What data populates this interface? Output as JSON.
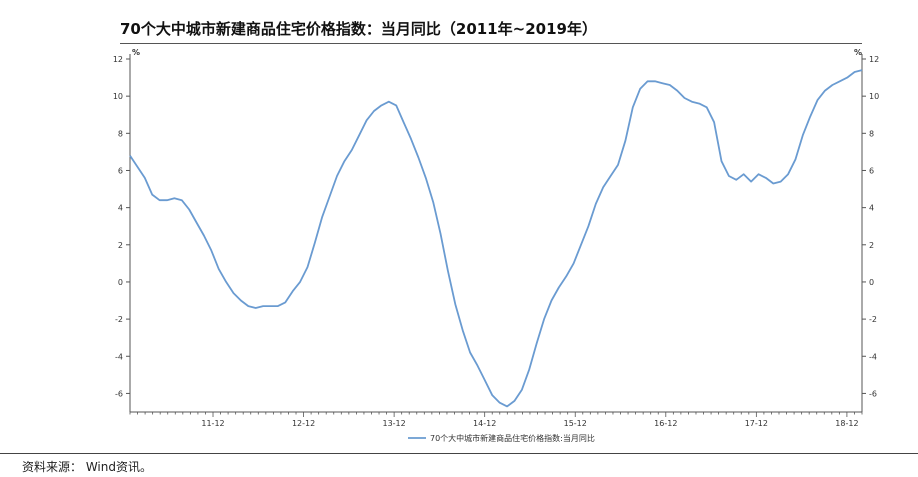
{
  "title": "70个大中城市新建商品住宅价格指数：当月同比（2011年~2019年）",
  "source": "资料来源：  Wind资讯。",
  "chart_data": {
    "type": "line",
    "title": "70个大中城市新建商品住宅价格指数：当月同比（2011年~2019年）",
    "ylim": [
      -7,
      12
    ],
    "y_ticks": [
      12,
      10,
      8,
      6,
      4,
      2,
      0,
      -2,
      -4,
      -6
    ],
    "y_unit_left": "%",
    "y_unit_right": "%",
    "x_tick_labels": [
      "11-12",
      "12-12",
      "13-12",
      "14-12",
      "15-12",
      "16-12",
      "17-12",
      "18-12"
    ],
    "legend_position": "bottom-center",
    "line_color": "#6a9bd1",
    "series": [
      {
        "name": "70个大中城市新建商品住宅价格指数:当月同比",
        "values": [
          6.8,
          6.2,
          5.6,
          4.7,
          4.4,
          4.4,
          4.5,
          4.4,
          3.9,
          3.2,
          2.5,
          1.7,
          0.7,
          0.0,
          -0.6,
          -1.0,
          -1.3,
          -1.4,
          -1.3,
          -1.3,
          -1.3,
          -1.1,
          -0.5,
          0.0,
          0.8,
          2.1,
          3.5,
          4.6,
          5.7,
          6.5,
          7.1,
          7.9,
          8.7,
          9.2,
          9.5,
          9.7,
          9.5,
          8.6,
          7.7,
          6.7,
          5.6,
          4.3,
          2.6,
          0.6,
          -1.2,
          -2.6,
          -3.8,
          -4.5,
          -5.3,
          -6.1,
          -6.5,
          -6.7,
          -6.4,
          -5.8,
          -4.7,
          -3.3,
          -2.0,
          -1.0,
          -0.3,
          0.3,
          1.0,
          2.0,
          3.0,
          4.2,
          5.1,
          5.7,
          6.3,
          7.6,
          9.4,
          10.4,
          10.8,
          10.8,
          10.7,
          10.6,
          10.3,
          9.9,
          9.7,
          9.6,
          9.4,
          8.6,
          6.5,
          5.7,
          5.5,
          5.8,
          5.4,
          5.8,
          5.6,
          5.3,
          5.4,
          5.8,
          6.6,
          7.9,
          8.9,
          9.8,
          10.3,
          10.6,
          10.8,
          11.0,
          11.3,
          11.4
        ]
      }
    ]
  }
}
